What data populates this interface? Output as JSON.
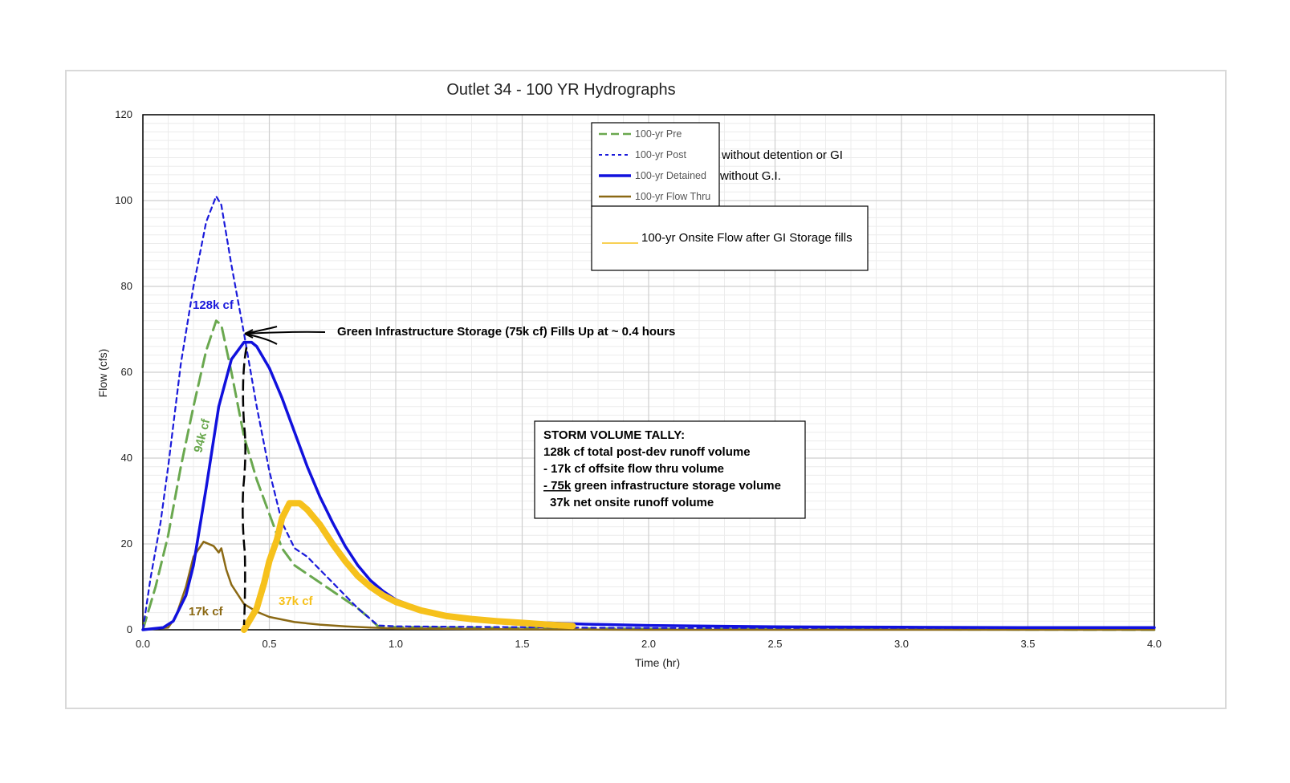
{
  "chart_data": {
    "type": "line",
    "title": "Outlet 34 - 100 YR Hydrographs",
    "xlabel": "Time (hr)",
    "ylabel": "Flow (cfs)",
    "xlim": [
      0,
      4
    ],
    "ylim": [
      0,
      120
    ],
    "x_ticks": [
      "0.0",
      "0.5",
      "1.0",
      "1.5",
      "2.0",
      "2.5",
      "3.0",
      "3.5",
      "4.0"
    ],
    "y_ticks": [
      "0",
      "20",
      "40",
      "60",
      "80",
      "100",
      "120"
    ],
    "x_ticks_values": [
      0,
      0.5,
      1,
      1.5,
      2,
      2.5,
      3,
      3.5,
      4
    ],
    "y_ticks_values": [
      0,
      20,
      40,
      60,
      80,
      100,
      120
    ],
    "grid": true,
    "legend_position": "top-center",
    "series": [
      {
        "name": "100-yr Pre",
        "color": "#6aa84f",
        "style": "dashed",
        "points": [
          [
            0,
            0
          ],
          [
            0.05,
            10
          ],
          [
            0.1,
            22
          ],
          [
            0.15,
            38
          ],
          [
            0.2,
            52
          ],
          [
            0.25,
            65
          ],
          [
            0.29,
            72
          ],
          [
            0.31,
            71
          ],
          [
            0.35,
            60
          ],
          [
            0.4,
            45
          ],
          [
            0.45,
            35
          ],
          [
            0.5,
            27
          ],
          [
            0.55,
            19
          ],
          [
            0.6,
            15
          ],
          [
            0.65,
            13
          ],
          [
            0.7,
            11
          ],
          [
            0.75,
            9
          ],
          [
            0.8,
            7
          ],
          [
            0.85,
            5
          ],
          [
            0.9,
            2.5
          ],
          [
            0.93,
            0.8
          ],
          [
            1.0,
            0.6
          ],
          [
            1.5,
            0.4
          ],
          [
            2.0,
            0.2
          ],
          [
            4.0,
            0
          ]
        ]
      },
      {
        "name": "100-yr Post",
        "color": "#1a1adb",
        "style": "dotted",
        "points": [
          [
            0,
            0
          ],
          [
            0.03,
            12
          ],
          [
            0.07,
            25
          ],
          [
            0.1,
            38
          ],
          [
            0.15,
            62
          ],
          [
            0.2,
            80
          ],
          [
            0.25,
            95
          ],
          [
            0.29,
            101
          ],
          [
            0.31,
            99
          ],
          [
            0.35,
            85
          ],
          [
            0.4,
            69
          ],
          [
            0.45,
            52
          ],
          [
            0.5,
            37
          ],
          [
            0.55,
            25
          ],
          [
            0.6,
            19
          ],
          [
            0.65,
            17
          ],
          [
            0.7,
            14
          ],
          [
            0.75,
            11
          ],
          [
            0.8,
            8
          ],
          [
            0.85,
            5
          ],
          [
            0.9,
            2.5
          ],
          [
            0.93,
            1
          ],
          [
            1.0,
            0.8
          ],
          [
            1.5,
            0.6
          ],
          [
            2.0,
            0.4
          ],
          [
            2.5,
            0.3
          ],
          [
            3.0,
            0.2
          ],
          [
            4.0,
            0.1
          ]
        ]
      },
      {
        "name": "100-yr Detained",
        "color": "#1111dd",
        "style": "solid",
        "points": [
          [
            0,
            0
          ],
          [
            0.08,
            0.5
          ],
          [
            0.12,
            2
          ],
          [
            0.17,
            8
          ],
          [
            0.2,
            15
          ],
          [
            0.25,
            33
          ],
          [
            0.3,
            52
          ],
          [
            0.35,
            63
          ],
          [
            0.4,
            67
          ],
          [
            0.43,
            67
          ],
          [
            0.45,
            66
          ],
          [
            0.5,
            61
          ],
          [
            0.55,
            54
          ],
          [
            0.6,
            46
          ],
          [
            0.65,
            38
          ],
          [
            0.7,
            31
          ],
          [
            0.75,
            25
          ],
          [
            0.8,
            19.5
          ],
          [
            0.85,
            15
          ],
          [
            0.9,
            11.5
          ],
          [
            0.95,
            9
          ],
          [
            1.0,
            7
          ],
          [
            1.1,
            4.8
          ],
          [
            1.2,
            3.5
          ],
          [
            1.3,
            2.7
          ],
          [
            1.4,
            2.2
          ],
          [
            1.5,
            1.8
          ],
          [
            1.75,
            1.3
          ],
          [
            2.0,
            1.0
          ],
          [
            2.5,
            0.7
          ],
          [
            3.0,
            0.6
          ],
          [
            3.5,
            0.5
          ],
          [
            4.0,
            0.5
          ]
        ]
      },
      {
        "name": "100-yr Flow Thru",
        "color": "#8b6914",
        "style": "solid",
        "points": [
          [
            0,
            0
          ],
          [
            0.1,
            0.5
          ],
          [
            0.13,
            3
          ],
          [
            0.17,
            10
          ],
          [
            0.2,
            17
          ],
          [
            0.24,
            20.5
          ],
          [
            0.28,
            19.5
          ],
          [
            0.3,
            18
          ],
          [
            0.31,
            19
          ],
          [
            0.33,
            14
          ],
          [
            0.35,
            10.5
          ],
          [
            0.4,
            6
          ],
          [
            0.45,
            4.2
          ],
          [
            0.5,
            3
          ],
          [
            0.6,
            1.8
          ],
          [
            0.7,
            1.2
          ],
          [
            0.8,
            0.8
          ],
          [
            0.9,
            0.5
          ],
          [
            1.0,
            0.3
          ],
          [
            1.5,
            0.1
          ],
          [
            2.0,
            0
          ],
          [
            4.0,
            0
          ]
        ]
      },
      {
        "name": "100-yr Onsite Flow after GI Storage fills",
        "color": "#f6c11c",
        "style": "thick",
        "points": [
          [
            0.4,
            0
          ],
          [
            0.42,
            2
          ],
          [
            0.45,
            5
          ],
          [
            0.48,
            11
          ],
          [
            0.5,
            16
          ],
          [
            0.53,
            21
          ],
          [
            0.55,
            26
          ],
          [
            0.58,
            29.5
          ],
          [
            0.62,
            29.5
          ],
          [
            0.65,
            28
          ],
          [
            0.7,
            24.5
          ],
          [
            0.75,
            20
          ],
          [
            0.8,
            16
          ],
          [
            0.85,
            12.5
          ],
          [
            0.9,
            10
          ],
          [
            0.95,
            8
          ],
          [
            1.0,
            6.5
          ],
          [
            1.1,
            4.5
          ],
          [
            1.2,
            3.2
          ],
          [
            1.3,
            2.5
          ],
          [
            1.4,
            2
          ],
          [
            1.5,
            1.6
          ],
          [
            1.6,
            1.2
          ],
          [
            1.7,
            0.9
          ]
        ]
      }
    ],
    "legend_notes": {
      "post": "without detention or GI",
      "detained": "without G.I."
    },
    "annotations": {
      "post_volume": "128k cf",
      "pre_volume": "94k cf",
      "flow_thru_volume": "17k cf",
      "onsite_volume": "37k cf",
      "gi_note": "Green Infrastructure Storage (75k cf) Fills Up at ~ 0.4 hours"
    },
    "tally": {
      "heading": "STORM VOLUME TALLY:",
      "line1": "128k cf total post-dev runoff volume",
      "line2": "- 17k cf offsite flow thru volume",
      "line3_underlined": "- 75k",
      "line3_rest": " green infrastructure storage volume",
      "line4": "37k  net onsite runoff volume"
    }
  }
}
